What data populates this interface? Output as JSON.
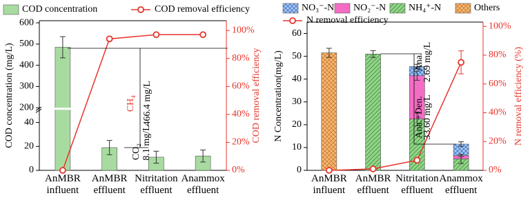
{
  "chart_data": [
    {
      "type": "bar",
      "categories": [
        "AnMBR influent",
        "AnMBR effluent",
        "Nitritation effluent",
        "Anammox effluent"
      ],
      "ylabel": "COD concentration (mg/L)",
      "y2label": "COD removal efficiency",
      "ylim": [
        0,
        610
      ],
      "ybreak": [
        50,
        200
      ],
      "yticks": [
        0,
        20,
        40,
        200,
        300,
        400,
        500,
        600
      ],
      "y2lim": [
        0,
        107
      ],
      "y2ticks": [
        {
          "value": 0,
          "label": "0%"
        },
        {
          "value": 20,
          "label": "20%"
        },
        {
          "value": 40,
          "label": "40%"
        },
        {
          "value": 60,
          "label": "60%"
        },
        {
          "value": 80,
          "label": "80%"
        },
        {
          "value": 100,
          "label": "100%"
        }
      ],
      "series": [
        {
          "name": "COD concentration",
          "kind": "bar",
          "color": "#a8dba0",
          "hatch": "none",
          "values": [
            485,
            19,
            11,
            12
          ],
          "errors": [
            50,
            6,
            5,
            5
          ]
        },
        {
          "name": "COD removal efficiency",
          "kind": "line",
          "axis": "y2",
          "color": "#e8332a",
          "values": [
            0,
            94,
            97,
            97
          ]
        }
      ],
      "annotations": [
        "CH₄",
        "466.4 mg/L",
        "CO₂",
        "8.1 mg/L"
      ]
    },
    {
      "type": "bar",
      "stacked": true,
      "categories": [
        "AnMBR influent",
        "AnMBR effluent",
        "Nitritation effluent",
        "Anammox effluent"
      ],
      "ylabel": "N Concentration(mg/L)",
      "y2label": "N removal efficiency (%)",
      "ylim": [
        0,
        65
      ],
      "yticks": [
        0,
        10,
        20,
        30,
        40,
        50,
        60
      ],
      "y2lim": [
        0,
        103
      ],
      "y2ticks": [
        {
          "value": 0,
          "label": "0%"
        },
        {
          "value": 20,
          "label": "20%"
        },
        {
          "value": 40,
          "label": "40%"
        },
        {
          "value": 60,
          "label": "60%"
        },
        {
          "value": 80,
          "label": "80%"
        },
        {
          "value": 100,
          "label": "100%"
        }
      ],
      "series": [
        {
          "name": "NO₃⁻-N",
          "kind": "bar",
          "color": "#a9c9f2",
          "hatch": "cross",
          "hatch_color": "#3a6fc4",
          "values": [
            0,
            0,
            4,
            5
          ],
          "errors": [
            null,
            null,
            1,
            1
          ]
        },
        {
          "name": "NO₂⁻-N",
          "kind": "bar",
          "color": "#f46dc4",
          "hatch": "none",
          "values": [
            0,
            0,
            19,
            1.5
          ],
          "errors": [
            null,
            null,
            2,
            0.5
          ]
        },
        {
          "name": "NH₄⁺-N",
          "kind": "bar",
          "color": "#92d48a",
          "hatch": "diagonal",
          "hatch_color": "#3f8f3a",
          "values": [
            0,
            51,
            22.5,
            5
          ],
          "errors": [
            null,
            1.5,
            3,
            2
          ]
        },
        {
          "name": "Others",
          "kind": "bar",
          "color": "#f7b877",
          "hatch": "cross",
          "hatch_color": "#c77a2a",
          "values": [
            51.5,
            0,
            0,
            0
          ],
          "errors": [
            2,
            null,
            null,
            null
          ]
        },
        {
          "name": "N removal efficiency",
          "kind": "line",
          "axis": "y2",
          "color": "#e8332a",
          "values": [
            0,
            1,
            7,
            75
          ],
          "errors": [
            null,
            null,
            null,
            8
          ]
        }
      ],
      "annotations": [
        "Ana.",
        "2.69 mg/L",
        "Ana.+Den.",
        "33.60 mg/L"
      ]
    }
  ]
}
